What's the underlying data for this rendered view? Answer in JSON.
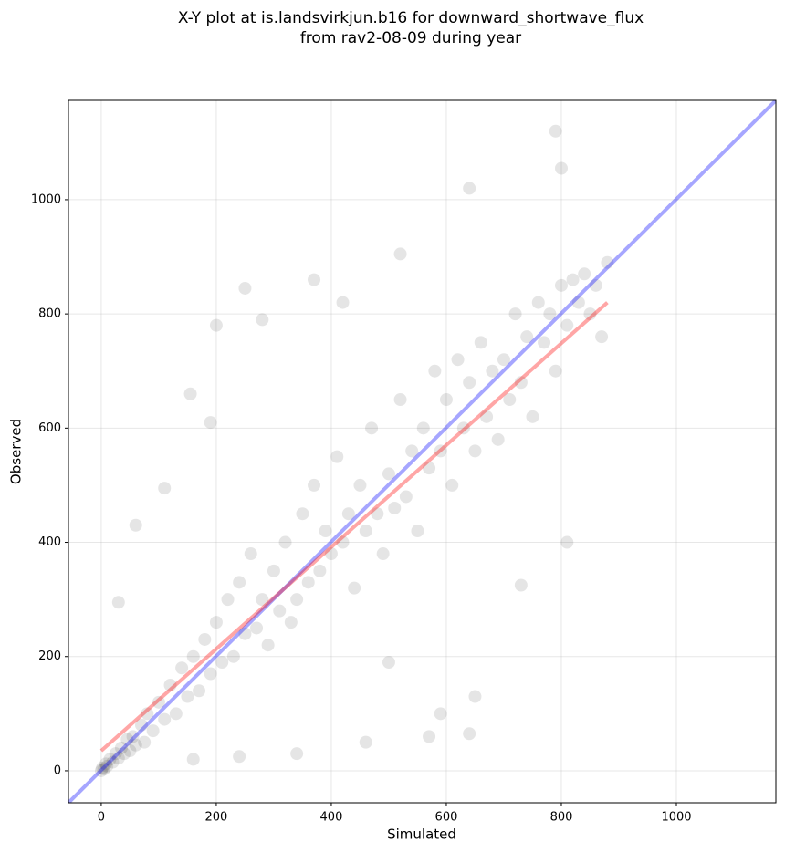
{
  "chart_data": {
    "type": "scatter",
    "title": [
      "X-Y plot at is.landsvirkjun.b16 for downward_shortwave_flux",
      "from rav2-08-09 during year"
    ],
    "x_label": "Simulated",
    "y_label": "Observed",
    "xlim": [
      -57,
      1173
    ],
    "ylim": [
      -56,
      1174
    ],
    "xticks": [
      0,
      200,
      400,
      600,
      800,
      1000
    ],
    "yticks": [
      0,
      200,
      400,
      600,
      800,
      1000
    ],
    "grid": true,
    "color": "#000000",
    "x": [
      0,
      2,
      5,
      8,
      10,
      15,
      20,
      25,
      30,
      35,
      40,
      45,
      50,
      55,
      60,
      70,
      75,
      80,
      90,
      100,
      110,
      120,
      130,
      140,
      150,
      160,
      170,
      180,
      190,
      200,
      210,
      220,
      230,
      240,
      250,
      260,
      270,
      280,
      290,
      300,
      310,
      320,
      330,
      340,
      350,
      360,
      370,
      380,
      390,
      400,
      410,
      420,
      430,
      440,
      450,
      460,
      470,
      480,
      490,
      500,
      510,
      520,
      530,
      540,
      550,
      560,
      570,
      580,
      590,
      600,
      610,
      620,
      630,
      640,
      650,
      660,
      670,
      680,
      690,
      700,
      710,
      720,
      730,
      740,
      750,
      760,
      770,
      780,
      790,
      800,
      810,
      820,
      830,
      840,
      850,
      860,
      870,
      880,
      200,
      250,
      155,
      370,
      790,
      800,
      640,
      520,
      590,
      570,
      640,
      460,
      340,
      240,
      730,
      810,
      60,
      30,
      110,
      190,
      280,
      420,
      650,
      500,
      160
    ],
    "y": [
      0,
      5,
      3,
      12,
      8,
      20,
      15,
      30,
      22,
      40,
      30,
      55,
      35,
      60,
      45,
      80,
      50,
      100,
      70,
      120,
      90,
      150,
      100,
      180,
      130,
      200,
      140,
      230,
      170,
      260,
      190,
      300,
      200,
      330,
      240,
      380,
      250,
      300,
      220,
      350,
      280,
      400,
      260,
      300,
      450,
      330,
      500,
      350,
      420,
      380,
      550,
      400,
      450,
      320,
      500,
      420,
      600,
      450,
      380,
      520,
      460,
      650,
      480,
      560,
      420,
      600,
      530,
      700,
      560,
      650,
      500,
      720,
      600,
      680,
      560,
      750,
      620,
      700,
      580,
      720,
      650,
      800,
      680,
      760,
      620,
      820,
      750,
      800,
      700,
      850,
      780,
      860,
      820,
      870,
      800,
      850,
      760,
      890,
      780,
      845,
      660,
      860,
      1120,
      1055,
      1020,
      905,
      100,
      60,
      65,
      50,
      30,
      25,
      325,
      400,
      430,
      295,
      495,
      610,
      790,
      820,
      130,
      190,
      20
    ],
    "lines": [
      {
        "x": [
          -57,
          1173
        ],
        "y": [
          -56,
          1174
        ],
        "color": "#0000ff"
      },
      {
        "x": [
          0,
          880
        ],
        "y": [
          35,
          820
        ],
        "color": "#ff0000"
      }
    ]
  }
}
